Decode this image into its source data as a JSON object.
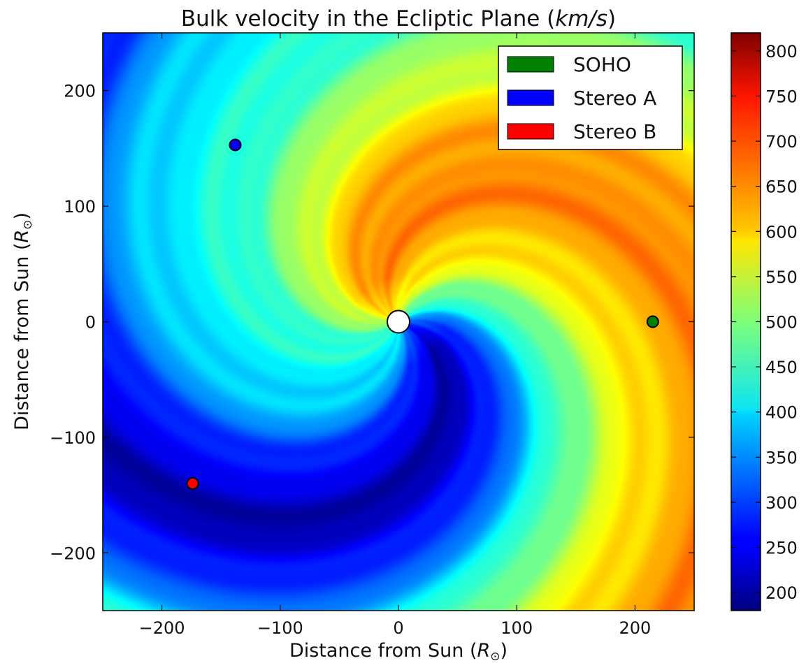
{
  "chart_data": {
    "type": "heatmap",
    "title": "Bulk velocity in the Ecliptic Plane",
    "title_unit": "km/s",
    "xlabel": "Distance from Sun",
    "ylabel": "Distance from Sun",
    "axis_unit": "R",
    "axis_unit_sub": "⊙",
    "xlim": [
      -250,
      250
    ],
    "ylim": [
      -250,
      250
    ],
    "x_ticks": [
      -200,
      -100,
      0,
      100,
      200
    ],
    "y_ticks": [
      -200,
      -100,
      0,
      100,
      200
    ],
    "x_tick_labels": [
      "−200",
      "−100",
      "0",
      "100",
      "200"
    ],
    "y_tick_labels": [
      "−200",
      "−100",
      "0",
      "100",
      "200"
    ],
    "colorbar": {
      "min": 180,
      "max": 820,
      "ticks": [
        200,
        250,
        300,
        350,
        400,
        450,
        500,
        550,
        600,
        650,
        700,
        750,
        800
      ],
      "tick_labels": [
        "200",
        "250",
        "300",
        "350",
        "400",
        "450",
        "500",
        "550",
        "600",
        "650",
        "700",
        "750",
        "800"
      ],
      "colormap": "jet"
    },
    "sun": {
      "x": 0,
      "y": 0
    },
    "spacecraft": [
      {
        "name": "SOHO",
        "x": 215,
        "y": 0,
        "color": "#008000"
      },
      {
        "name": "Stereo A",
        "x": -138,
        "y": 153,
        "color": "#0000ff"
      },
      {
        "name": "Stereo B",
        "x": -174,
        "y": -140,
        "color": "#ff0000"
      }
    ],
    "legend_position": "top-right",
    "grid": false
  }
}
